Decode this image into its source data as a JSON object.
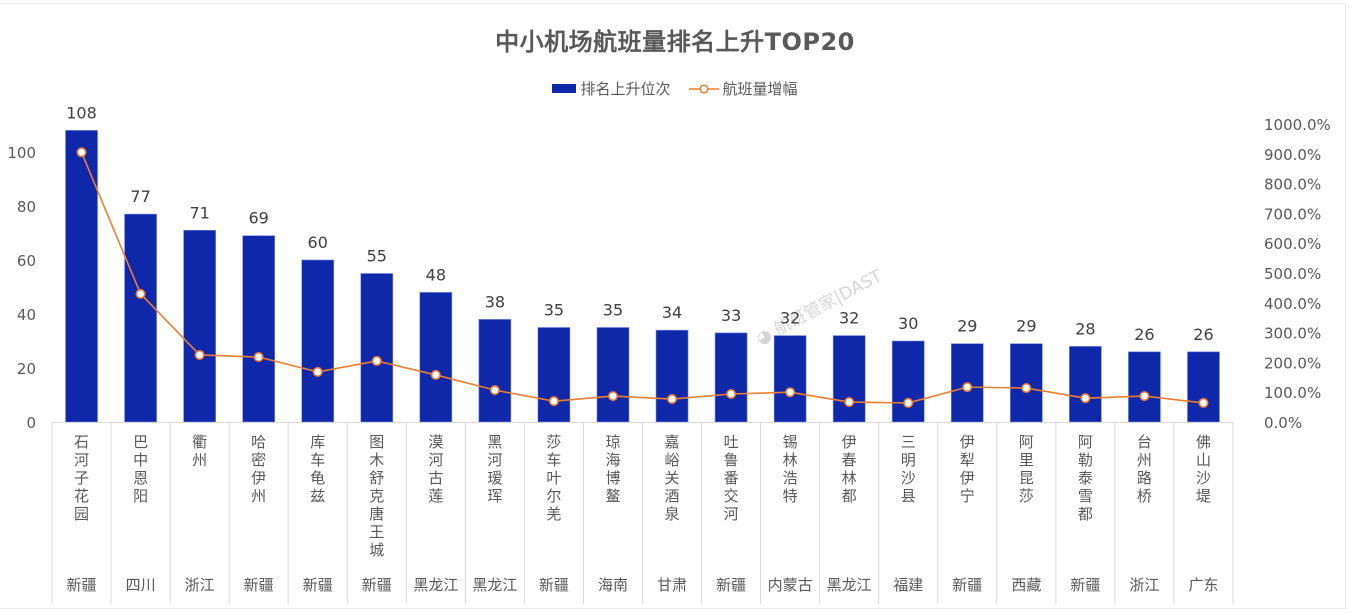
{
  "chart_data": {
    "type": "bar",
    "title": "中小机场航班量排名上升TOP20",
    "legend": [
      "排名上升位次",
      "航班量增幅"
    ],
    "legend_position": "top",
    "watermark": "航班管家|DAST",
    "categories": [
      "石河子花园",
      "巴中恩阳",
      "衢州",
      "哈密伊州",
      "库车龟兹",
      "图木舒克唐王城",
      "漠河古莲",
      "黑河瑷珲",
      "莎车叶尔羌",
      "琼海博鳌",
      "嘉峪关酒泉",
      "吐鲁番交河",
      "锡林浩特",
      "伊春林都",
      "三明沙县",
      "伊犁伊宁",
      "阿里昆莎",
      "阿勒泰雪都",
      "台州路桥",
      "佛山沙堤"
    ],
    "provinces": [
      "新疆",
      "四川",
      "浙江",
      "新疆",
      "新疆",
      "新疆",
      "黑龙江",
      "黑龙江",
      "新疆",
      "海南",
      "甘肃",
      "新疆",
      "内蒙古",
      "黑龙江",
      "福建",
      "新疆",
      "西藏",
      "新疆",
      "浙江",
      "广东"
    ],
    "series": [
      {
        "name": "排名上升位次",
        "type": "bar",
        "axis": "left",
        "color": "#0f28aa",
        "values": [
          108,
          77,
          71,
          69,
          60,
          55,
          48,
          38,
          35,
          35,
          34,
          33,
          32,
          32,
          30,
          29,
          29,
          28,
          26,
          26
        ]
      },
      {
        "name": "航班量增幅",
        "type": "line",
        "axis": "right",
        "color": "#ed7d31",
        "unit": "%",
        "values": [
          905,
          430,
          225,
          218,
          168,
          205,
          158,
          107,
          70,
          87,
          77,
          94,
          100,
          67,
          64,
          117,
          114,
          80,
          87,
          64
        ]
      }
    ],
    "y_left": {
      "ylim": [
        0,
        110
      ],
      "ticks": [
        0,
        20,
        40,
        60,
        80,
        100
      ]
    },
    "y_right": {
      "ylim": [
        0,
        1000
      ],
      "ticks": [
        "0.0%",
        "100.0%",
        "200.0%",
        "300.0%",
        "400.0%",
        "500.0%",
        "600.0%",
        "700.0%",
        "800.0%",
        "900.0%",
        "1000.0%"
      ]
    },
    "xlabel": "",
    "ylabel": "",
    "grid": false
  }
}
